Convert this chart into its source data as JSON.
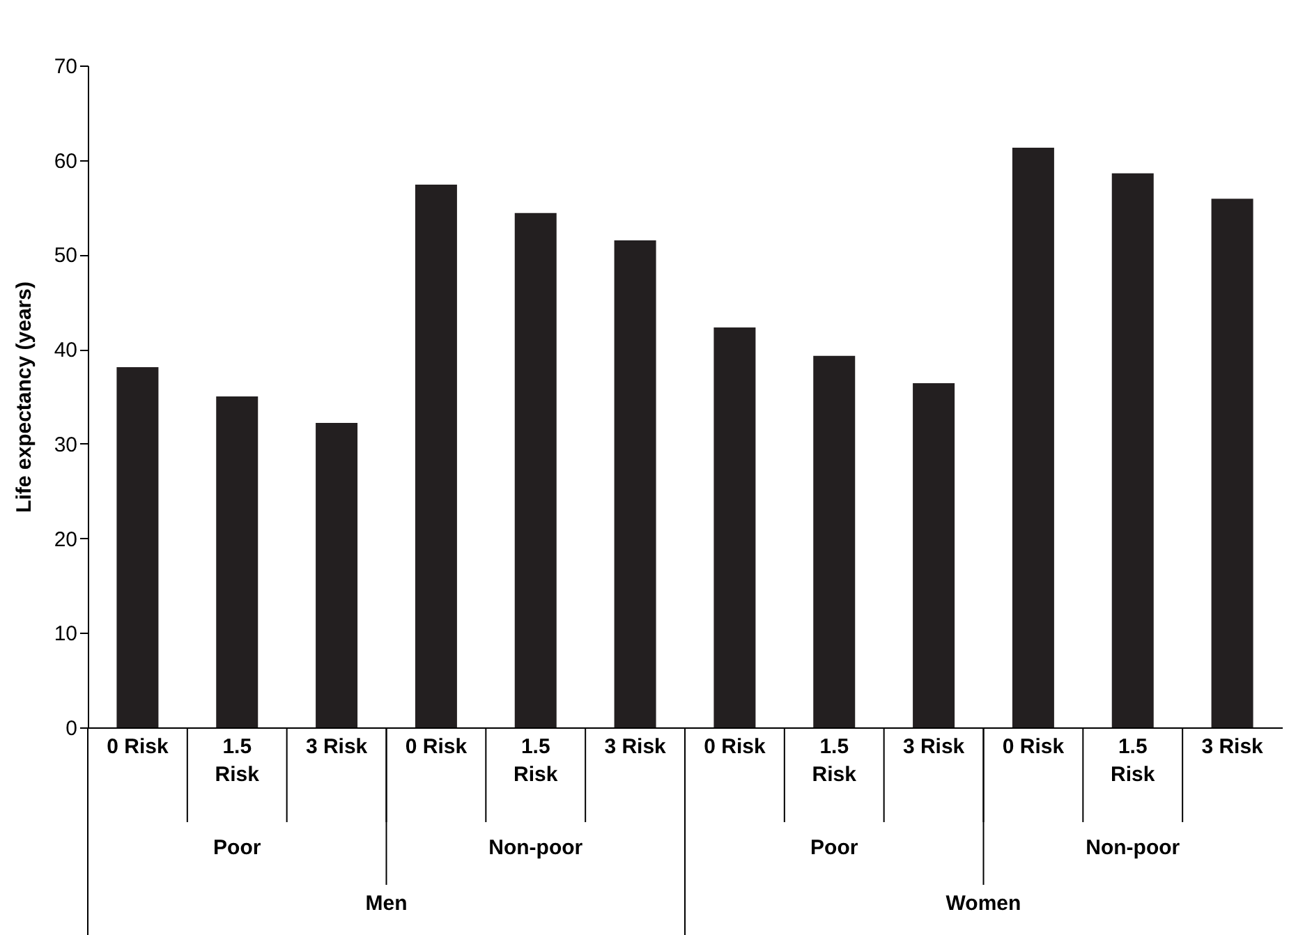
{
  "chart_data": {
    "type": "bar",
    "ylabel": "Life expectancy (years)",
    "categories": [
      "0 Risk",
      "1.5 Risk",
      "3 Risk",
      "0 Risk",
      "1.5 Risk",
      "3 Risk",
      "0 Risk",
      "1.5 Risk",
      "3 Risk",
      "0 Risk",
      "1.5 Risk",
      "3 Risk"
    ],
    "values": [
      38.1,
      35.0,
      32.2,
      57.4,
      54.4,
      51.5,
      42.3,
      39.3,
      36.4,
      61.3,
      58.6,
      55.9
    ],
    "color": "#231f20",
    "ylim": [
      0,
      70
    ],
    "yticks": [
      0,
      10,
      20,
      30,
      40,
      50,
      60,
      70
    ],
    "annotations": [
      "Poor",
      "Non-poor",
      "Poor",
      "Non-poor",
      "Men",
      "Women"
    ]
  }
}
